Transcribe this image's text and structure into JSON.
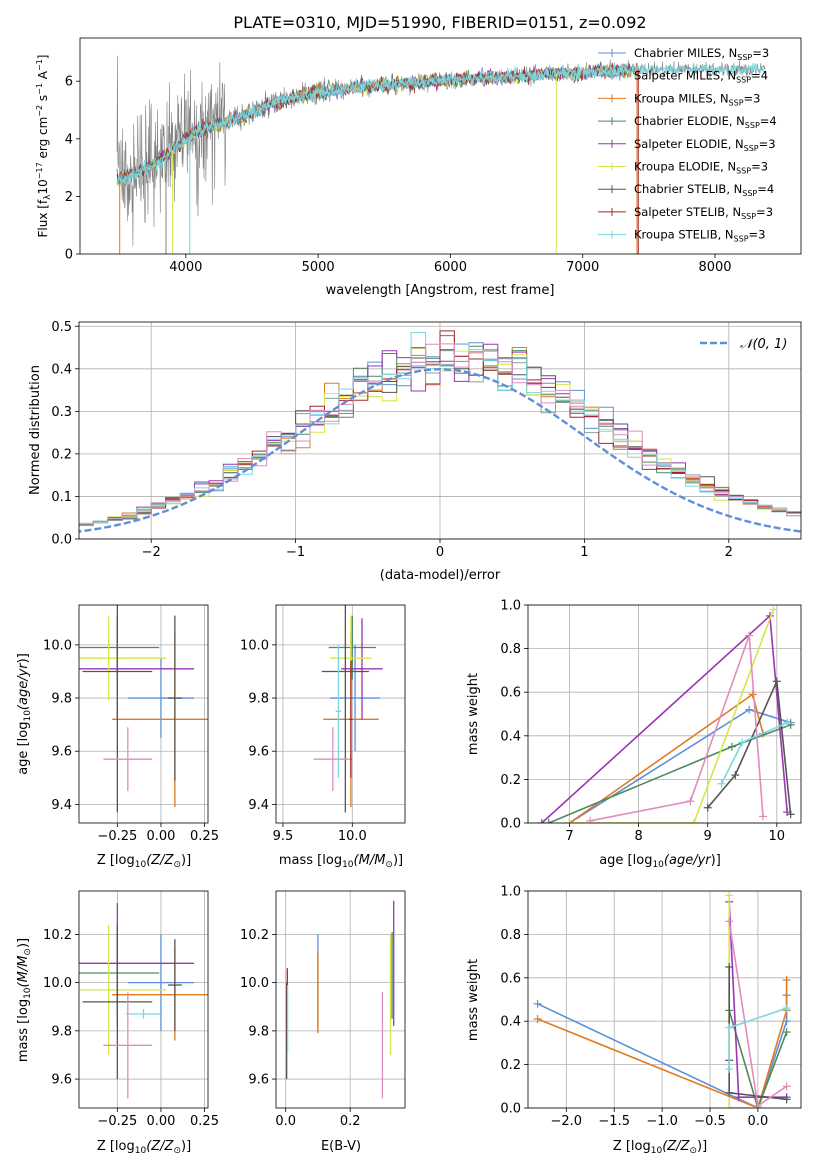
{
  "figure_title": "PLATE=0310, MJD=51990, FIBERID=0151, z=0.092",
  "colors": {
    "Chabrier MILES": "#5f8fd8",
    "Salpeter MILES": "#8aa0a0",
    "Kroupa MILES": "#e07b20",
    "Chabrier ELODIE": "#4f8a5c",
    "Salpeter ELODIE": "#9b35b5",
    "Kroupa ELODIE": "#d6e64a",
    "Chabrier STELIB": "#555555",
    "Salpeter STELIB": "#a02828",
    "Kroupa STELIB": "#7ad6e0",
    "pink": "#e28bbd",
    "data": "#808080"
  },
  "chart_data": [
    {
      "id": "spectrum",
      "type": "line",
      "xlabel": "wavelength [Angstrom, rest frame]",
      "ylabel": "Flux [f",
      "xlim": [
        3200,
        8650
      ],
      "ylim": [
        0,
        7.5
      ],
      "xticks": [
        4000,
        5000,
        6000,
        7000,
        8000
      ],
      "yticks": [
        0,
        2,
        4,
        6
      ],
      "grid": false,
      "legend_position": "right",
      "legend": [
        {
          "label": "Chabrier MILES, N",
          "sub": "SSP",
          "suffix": "=3",
          "color": "#5f8fd8"
        },
        {
          "label": "Salpeter MILES, N",
          "sub": "SSP",
          "suffix": "=4",
          "color": "#8aa0a0"
        },
        {
          "label": "Kroupa MILES, N",
          "sub": "SSP",
          "suffix": "=3",
          "color": "#e07b20"
        },
        {
          "label": "Chabrier ELODIE, N",
          "sub": "SSP",
          "suffix": "=4",
          "color": "#4f8a5c"
        },
        {
          "label": "Salpeter ELODIE, N",
          "sub": "SSP",
          "suffix": "=3",
          "color": "#9b35b5"
        },
        {
          "label": "Kroupa ELODIE, N",
          "sub": "SSP",
          "suffix": "=3",
          "color": "#d6e64a"
        },
        {
          "label": "Chabrier STELIB, N",
          "sub": "SSP",
          "suffix": "=4",
          "color": "#555555"
        },
        {
          "label": "Salpeter STELIB, N",
          "sub": "SSP",
          "suffix": "=3",
          "color": "#a02828"
        },
        {
          "label": "Kroupa STELIB, N",
          "sub": "SSP",
          "suffix": "=3",
          "color": "#7ad6e0"
        }
      ],
      "continuum": {
        "x": [
          3480,
          3600,
          3750,
          3900,
          4000,
          4100,
          4300,
          4500,
          4700,
          5000,
          5300,
          5600,
          5900,
          6200,
          6600,
          7000,
          7400
        ],
        "y": [
          2.5,
          2.7,
          3.0,
          3.6,
          4.0,
          4.3,
          4.6,
          4.9,
          5.3,
          5.6,
          5.8,
          5.9,
          6.0,
          6.1,
          6.2,
          6.3,
          6.4
        ]
      },
      "data_range": [
        3480,
        8380
      ],
      "vertical_drops": [
        {
          "x": 3500,
          "color": "#e07b20"
        },
        {
          "x": 3850,
          "color": "#808080"
        },
        {
          "x": 3900,
          "color": "#d6e64a"
        },
        {
          "x": 4030,
          "color": "#7ad6e0"
        },
        {
          "x": 6800,
          "color": "#d6e64a"
        },
        {
          "x": 7410,
          "color": "#e07b20"
        },
        {
          "x": 7420,
          "color": "#a02828"
        }
      ]
    },
    {
      "id": "residual-histogram",
      "type": "histogram",
      "xlabel": "(data-model)/error",
      "ylabel": "Normed distribution",
      "xlim": [
        -2.5,
        2.5
      ],
      "ylim": [
        0,
        0.51
      ],
      "xticks": [
        -2,
        -1,
        0,
        1,
        2
      ],
      "xtick_labels": [
        "−2",
        "−1",
        "0",
        "1",
        "2"
      ],
      "yticks": [
        0.0,
        0.1,
        0.2,
        0.3,
        0.4,
        0.5
      ],
      "ytick_labels": [
        "0.0",
        "0.1",
        "0.2",
        "0.3",
        "0.4",
        "0.5"
      ],
      "grid": true,
      "legend_position": "top-right",
      "legend_label": "𝒩(0, 1)",
      "gaussian": {
        "mu": 0,
        "sigma": 1,
        "color": "#5f8fd8"
      },
      "bin_width": 0.1
    },
    {
      "id": "age-vs-Z",
      "type": "errorbar",
      "xlabel": "Z [log",
      "xlabel_sub": "10",
      "xlabel_tail": "(Z/Z",
      "ylabel": "age  [log",
      "xlim": [
        -0.47,
        0.27
      ],
      "ylim": [
        9.33,
        10.15
      ],
      "xticks": [
        -0.25,
        0.0,
        0.25
      ],
      "xtick_labels": [
        "−0.25",
        "0.00",
        "0.25"
      ],
      "yticks": [
        9.4,
        9.6,
        9.8,
        10.0
      ],
      "ytick_labels": [
        "9.4",
        "9.6",
        "9.8",
        "10.0"
      ],
      "grid": true,
      "points": [
        {
          "x": 0.0,
          "y": 9.8,
          "xerr": 0.19,
          "yerr": 0.15,
          "color": "#5f8fd8"
        },
        {
          "x": 0.08,
          "y": 9.72,
          "xerr": 0.36,
          "yerr": 0.33,
          "color": "#e07b20"
        },
        {
          "x": -0.25,
          "y": 9.99,
          "xerr": 0.24,
          "yerr": 0.12,
          "color": "#4f8a5c"
        },
        {
          "x": -0.25,
          "y": 9.91,
          "xerr": 0.44,
          "yerr": 0.19,
          "color": "#9b35b5"
        },
        {
          "x": -0.3,
          "y": 9.95,
          "xerr": 0.33,
          "yerr": 0.16,
          "color": "#d6e64a"
        },
        {
          "x": -0.25,
          "y": 9.9,
          "xerr": 0.2,
          "yerr": 0.53,
          "color": "#555555"
        },
        {
          "x": -0.19,
          "y": 9.57,
          "xerr": 0.14,
          "yerr": 0.12,
          "color": "#e28bbd"
        },
        {
          "x": 0.08,
          "y": 9.8,
          "xerr": 0.04,
          "yerr": 0.31,
          "color": "#555555"
        }
      ]
    },
    {
      "id": "age-vs-mass",
      "type": "errorbar",
      "xlabel": "mass [log",
      "xlim": [
        9.45,
        10.38
      ],
      "ylim": [
        9.33,
        10.15
      ],
      "xticks": [
        9.5,
        10.0
      ],
      "xtick_labels": [
        "9.5",
        "10.0"
      ],
      "yticks": [
        9.4,
        9.6,
        9.8,
        10.0
      ],
      "ytick_labels": [
        "9.4",
        "9.6",
        "9.8",
        "10.0"
      ],
      "grid": true,
      "points": [
        {
          "x": 10.02,
          "y": 9.8,
          "xerr": 0.18,
          "yerr": 0.2,
          "color": "#5f8fd8"
        },
        {
          "x": 9.99,
          "y": 9.72,
          "xerr": 0.2,
          "yerr": 0.33,
          "color": "#e07b20"
        },
        {
          "x": 10.0,
          "y": 9.99,
          "xerr": 0.17,
          "yerr": 0.12,
          "color": "#4f8a5c"
        },
        {
          "x": 10.07,
          "y": 9.91,
          "xerr": 0.15,
          "yerr": 0.19,
          "color": "#9b35b5"
        },
        {
          "x": 9.99,
          "y": 9.95,
          "xerr": 0.15,
          "yerr": 0.16,
          "color": "#d6e64a"
        },
        {
          "x": 9.95,
          "y": 9.9,
          "xerr": 0.17,
          "yerr": 0.53,
          "color": "#555555"
        },
        {
          "x": 9.86,
          "y": 9.57,
          "xerr": 0.14,
          "yerr": 0.12,
          "color": "#e28bbd"
        },
        {
          "x": 9.99,
          "y": 9.72,
          "xerr": 0.01,
          "yerr": 0.22,
          "color": "#a02828"
        },
        {
          "x": 9.9,
          "y": 9.75,
          "xerr": 0.02,
          "yerr": 0.25,
          "color": "#7ad6e0"
        }
      ]
    },
    {
      "id": "weight-vs-age",
      "type": "line",
      "xlabel": "age  [log",
      "ylabel": "mass weight",
      "xlim": [
        6.4,
        10.35
      ],
      "ylim": [
        0,
        1.0
      ],
      "xticks": [
        7,
        8,
        9,
        10
      ],
      "yticks": [
        0.0,
        0.2,
        0.4,
        0.6,
        0.8,
        1.0
      ],
      "ytick_labels": [
        "0.0",
        "0.2",
        "0.4",
        "0.6",
        "0.8",
        "1.0"
      ],
      "grid": true,
      "series": [
        {
          "color": "#5f8fd8",
          "x": [
            7.0,
            9.6,
            10.2
          ],
          "y": [
            0.0,
            0.52,
            0.46
          ]
        },
        {
          "color": "#e07b20",
          "x": [
            7.0,
            9.65,
            9.8
          ],
          "y": [
            0.0,
            0.59,
            0.41
          ]
        },
        {
          "color": "#4f8a5c",
          "x": [
            6.7,
            9.35,
            10.2
          ],
          "y": [
            0.0,
            0.35,
            0.45
          ]
        },
        {
          "color": "#9b35b5",
          "x": [
            6.6,
            9.9,
            10.15
          ],
          "y": [
            0.0,
            0.95,
            0.05
          ]
        },
        {
          "color": "#d6e64a",
          "x": [
            7.0,
            8.8,
            9.95
          ],
          "y": [
            0.0,
            0.0,
            0.98
          ]
        },
        {
          "color": "#555555",
          "x": [
            9.0,
            9.4,
            10.0,
            10.2
          ],
          "y": [
            0.07,
            0.22,
            0.65,
            0.04
          ]
        },
        {
          "color": "#e28bbd",
          "x": [
            7.3,
            8.75,
            9.6,
            9.8
          ],
          "y": [
            0.01,
            0.1,
            0.86,
            0.03
          ]
        },
        {
          "color": "#7ad6e0",
          "x": [
            9.2,
            9.5,
            10.15
          ],
          "y": [
            0.18,
            0.37,
            0.46
          ]
        }
      ]
    },
    {
      "id": "mass-vs-Z",
      "type": "errorbar",
      "xlabel": "Z [log",
      "ylabel": "mass [log",
      "xlim": [
        -0.47,
        0.27
      ],
      "ylim": [
        9.48,
        10.38
      ],
      "xticks": [
        -0.25,
        0.0,
        0.25
      ],
      "xtick_labels": [
        "−0.25",
        "0.00",
        "0.25"
      ],
      "yticks": [
        9.6,
        9.8,
        10.0,
        10.2
      ],
      "ytick_labels": [
        "9.6",
        "9.8",
        "10.0",
        "10.2"
      ],
      "grid": true,
      "points": [
        {
          "x": 0.0,
          "y": 10.0,
          "xerr": 0.19,
          "yerr": 0.2,
          "color": "#5f8fd8"
        },
        {
          "x": 0.08,
          "y": 9.95,
          "xerr": 0.36,
          "yerr": 0.19,
          "color": "#e07b20"
        },
        {
          "x": -0.25,
          "y": 10.04,
          "xerr": 0.24,
          "yerr": 0.17,
          "color": "#4f8a5c"
        },
        {
          "x": -0.25,
          "y": 10.08,
          "xerr": 0.44,
          "yerr": 0.25,
          "color": "#9b35b5"
        },
        {
          "x": -0.3,
          "y": 9.97,
          "xerr": 0.33,
          "yerr": 0.27,
          "color": "#d6e64a"
        },
        {
          "x": -0.25,
          "y": 9.92,
          "xerr": 0.2,
          "yerr": 0.32,
          "color": "#555555"
        },
        {
          "x": -0.19,
          "y": 9.74,
          "xerr": 0.14,
          "yerr": 0.22,
          "color": "#e28bbd"
        },
        {
          "x": -0.1,
          "y": 9.87,
          "xerr": 0.1,
          "yerr": 0.02,
          "color": "#7ad6e0"
        },
        {
          "x": 0.08,
          "y": 9.99,
          "xerr": 0.04,
          "yerr": 0.19,
          "color": "#555555"
        }
      ]
    },
    {
      "id": "mass-vs-EBV",
      "type": "errorbar",
      "xlabel": "E(B-V)",
      "xlim": [
        -0.03,
        0.37
      ],
      "ylim": [
        9.48,
        10.38
      ],
      "xticks": [
        0.0,
        0.2
      ],
      "xtick_labels": [
        "0.0",
        "0.2"
      ],
      "yticks": [
        9.6,
        9.8,
        10.0,
        10.2
      ],
      "ytick_labels": [
        "9.6",
        "9.8",
        "10.0",
        "10.2"
      ],
      "grid": true,
      "points": [
        {
          "x": 0.1,
          "y": 10.0,
          "xerr": 0,
          "yerr": 0.2,
          "color": "#5f8fd8"
        },
        {
          "x": 0.1,
          "y": 9.96,
          "xerr": 0,
          "yerr": 0.17,
          "color": "#e07b20"
        },
        {
          "x": 0.33,
          "y": 10.03,
          "xerr": 0,
          "yerr": 0.18,
          "color": "#4f8a5c"
        },
        {
          "x": 0.335,
          "y": 10.08,
          "xerr": 0,
          "yerr": 0.26,
          "color": "#9b35b5"
        },
        {
          "x": 0.325,
          "y": 9.95,
          "xerr": 0,
          "yerr": 0.25,
          "color": "#d6e64a"
        },
        {
          "x": 0.003,
          "y": 9.8,
          "xerr": 0,
          "yerr": 0.2,
          "color": "#555555"
        },
        {
          "x": 0.3,
          "y": 9.74,
          "xerr": 0,
          "yerr": 0.22,
          "color": "#e28bbd"
        },
        {
          "x": 0.005,
          "y": 9.92,
          "xerr": 0,
          "yerr": 0.14,
          "color": "#a02828"
        },
        {
          "x": 0.006,
          "y": 9.85,
          "xerr": 0,
          "yerr": 0.14,
          "color": "#7ad6e0"
        }
      ]
    },
    {
      "id": "weight-vs-Z",
      "type": "line",
      "xlabel": "Z [log",
      "ylabel": "mass weight",
      "xlim": [
        -2.4,
        0.45
      ],
      "ylim": [
        0,
        1.0
      ],
      "xticks": [
        -2.0,
        -1.5,
        -1.0,
        -0.5,
        0.0
      ],
      "xtick_labels": [
        "−2.0",
        "−1.5",
        "−1.0",
        "−0.5",
        "0.0"
      ],
      "yticks": [
        0.0,
        0.2,
        0.4,
        0.6,
        0.8,
        1.0
      ],
      "ytick_labels": [
        "0.0",
        "0.2",
        "0.4",
        "0.6",
        "0.8",
        "1.0"
      ],
      "grid": true,
      "series": [
        {
          "color": "#5f8fd8",
          "x": [
            -2.3,
            0.0,
            0.3,
            0.3
          ],
          "y": [
            0.48,
            0.0,
            0.4,
            0.52
          ]
        },
        {
          "color": "#e07b20",
          "x": [
            -2.3,
            0.0,
            0.3,
            0.3
          ],
          "y": [
            0.41,
            0.0,
            0.45,
            0.59
          ]
        },
        {
          "color": "#4f8a5c",
          "x": [
            -0.3,
            0.0,
            0.3
          ],
          "y": [
            0.45,
            0.0,
            0.35
          ]
        },
        {
          "color": "#9b35b5",
          "x": [
            -0.3,
            -0.2,
            0.3
          ],
          "y": [
            0.95,
            0.05,
            0.05
          ]
        },
        {
          "color": "#d6e64a",
          "x": [
            -0.3,
            -0.3,
            0.0
          ],
          "y": [
            0.98,
            0.0,
            0.0
          ]
        },
        {
          "color": "#555555",
          "x": [
            -0.3,
            -0.3,
            -0.3,
            0.3
          ],
          "y": [
            0.65,
            0.22,
            0.07,
            0.04
          ]
        },
        {
          "color": "#e28bbd",
          "x": [
            -0.3,
            0.0,
            0.3
          ],
          "y": [
            0.86,
            0.01,
            0.1
          ]
        },
        {
          "color": "#7ad6e0",
          "x": [
            -0.3,
            -0.3,
            0.3
          ],
          "y": [
            0.18,
            0.37,
            0.46
          ]
        }
      ]
    }
  ]
}
